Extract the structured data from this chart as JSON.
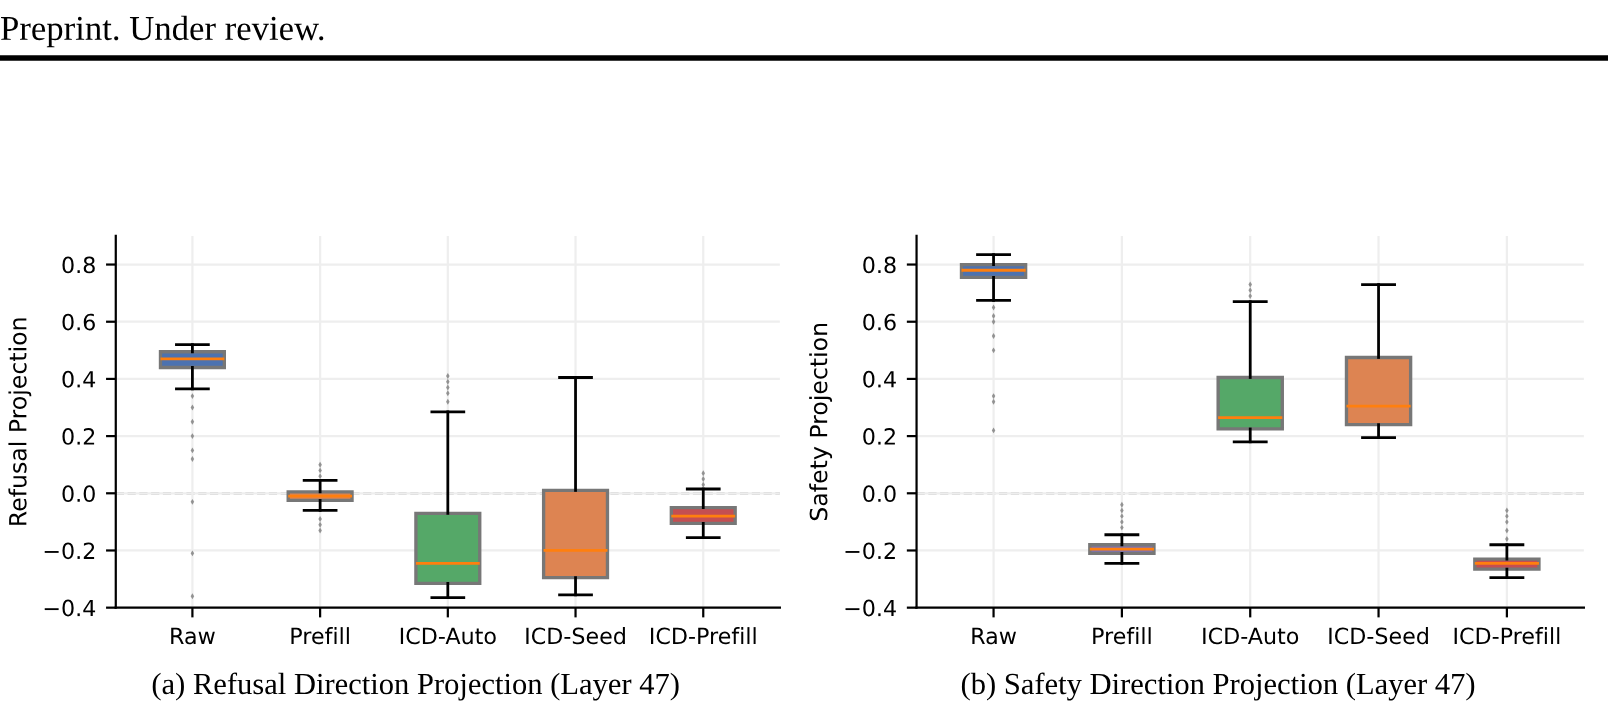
{
  "chart_data": [
    {
      "type": "box",
      "ylabel": "Refusal Projection",
      "categories": [
        "Raw",
        "Prefill",
        "ICD-Auto",
        "ICD-Seed",
        "ICD-Prefill"
      ],
      "colors": [
        "#4c72b0",
        "#dd8452",
        "#55a868",
        "#dd8452",
        "#c44e52"
      ],
      "boxes": [
        {
          "low": 0.365,
          "q1": 0.44,
          "median": 0.47,
          "q3": 0.495,
          "high": 0.52,
          "outliers": [
            0.34,
            0.3,
            0.25,
            0.2,
            0.15,
            0.12,
            -0.03,
            -0.21,
            -0.36
          ]
        },
        {
          "low": -0.06,
          "q1": -0.025,
          "median": -0.01,
          "q3": 0.005,
          "high": 0.045,
          "outliers": [
            0.06,
            0.08,
            0.1,
            -0.09,
            -0.11,
            -0.13
          ]
        },
        {
          "low": -0.365,
          "q1": -0.315,
          "median": -0.245,
          "q3": -0.07,
          "high": 0.285,
          "outliers": [
            0.32,
            0.35,
            0.37,
            0.39,
            0.41
          ]
        },
        {
          "low": -0.355,
          "q1": -0.295,
          "median": -0.2,
          "q3": 0.01,
          "high": 0.405
        },
        {
          "low": -0.155,
          "q1": -0.105,
          "median": -0.08,
          "q3": -0.05,
          "high": 0.015,
          "outliers": [
            0.03,
            0.05,
            0.07
          ]
        }
      ],
      "ylim": [
        -0.4,
        0.9
      ],
      "yticks": [
        {
          "value": -0.4,
          "label": "−0.4"
        },
        {
          "value": -0.2,
          "label": "−0.2"
        },
        {
          "value": 0,
          "label": "0.0"
        },
        0.2,
        0.4,
        0.6,
        0.8
      ],
      "grid": true,
      "ref_lines": [
        {
          "axis": "y",
          "value": 0,
          "color": "#aaaaaa",
          "line_style": "dashed"
        }
      ],
      "annotations": [
        "Preprint. Under review.",
        "(a) Refusal Direction Projection (Layer 47)"
      ]
    },
    {
      "type": "box",
      "ylabel": "Safety Projection",
      "categories": [
        "Raw",
        "Prefill",
        "ICD-Auto",
        "ICD-Seed",
        "ICD-Prefill"
      ],
      "colors": [
        "#4c72b0",
        "#8172b3",
        "#55a868",
        "#dd8452",
        "#c44e52"
      ],
      "boxes": [
        {
          "low": 0.675,
          "q1": 0.755,
          "median": 0.78,
          "q3": 0.8,
          "high": 0.835,
          "outliers": [
            0.65,
            0.62,
            0.6,
            0.55,
            0.5,
            0.34,
            0.32,
            0.22
          ]
        },
        {
          "low": -0.245,
          "q1": -0.21,
          "median": -0.195,
          "q3": -0.18,
          "high": -0.145,
          "outliers": [
            -0.12,
            -0.1,
            -0.08,
            -0.06,
            -0.04
          ]
        },
        {
          "low": 0.18,
          "q1": 0.225,
          "median": 0.265,
          "q3": 0.405,
          "high": 0.67,
          "outliers": [
            0.69,
            0.71,
            0.73
          ]
        },
        {
          "low": 0.195,
          "q1": 0.24,
          "median": 0.305,
          "q3": 0.475,
          "high": 0.73
        },
        {
          "low": -0.295,
          "q1": -0.265,
          "median": -0.245,
          "q3": -0.23,
          "high": -0.18,
          "outliers": [
            -0.16,
            -0.13,
            -0.1,
            -0.08,
            -0.06
          ]
        }
      ],
      "ylim": [
        -0.4,
        0.9
      ],
      "yticks": [
        {
          "value": -0.4,
          "label": "−0.4"
        },
        {
          "value": -0.2,
          "label": "−0.2"
        },
        {
          "value": 0,
          "label": "0.0"
        },
        0.2,
        0.4,
        0.6,
        0.8
      ],
      "grid": true,
      "ref_lines": [
        {
          "axis": "y",
          "value": 0,
          "color": "#aaaaaa",
          "line_style": "dashed"
        }
      ],
      "annotations": [
        "(b) Safety Direction Projection (Layer 47)"
      ]
    }
  ]
}
